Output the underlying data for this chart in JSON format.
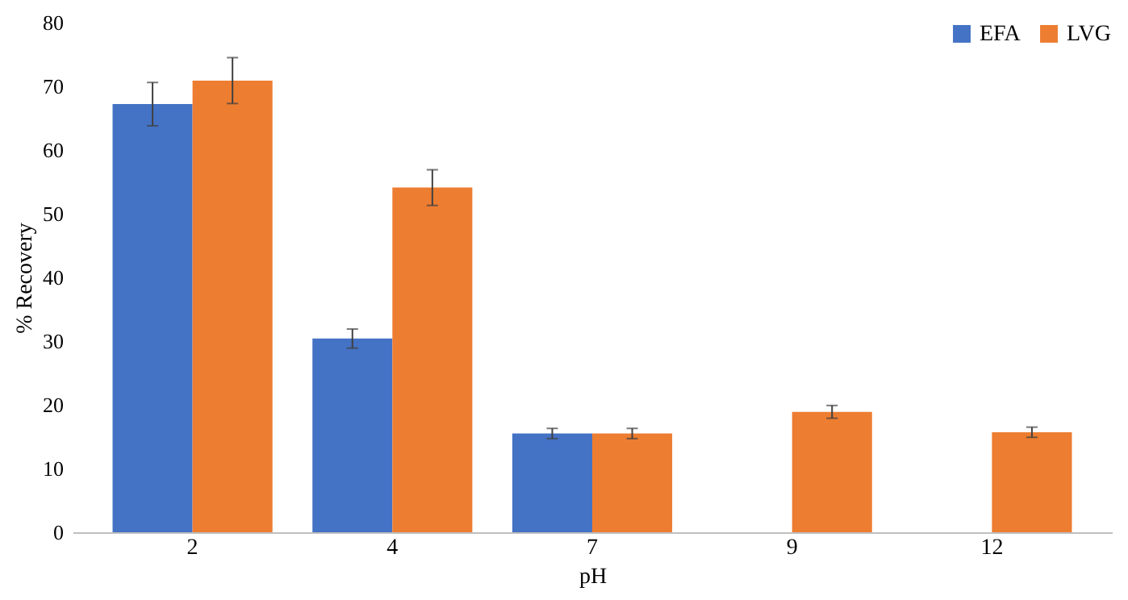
{
  "chart_data": {
    "type": "bar",
    "xlabel": "pH",
    "ylabel": "% Recovery",
    "categories": [
      "2",
      "4",
      "7",
      "9",
      "12"
    ],
    "series": [
      {
        "name": "EFA",
        "color": "#4472c4",
        "values": [
          67.2,
          30.4,
          15.5,
          null,
          null
        ],
        "errors": [
          3.4,
          1.5,
          0.8,
          null,
          null
        ]
      },
      {
        "name": "LVG",
        "color": "#ed7d31",
        "values": [
          70.9,
          54.1,
          15.5,
          18.9,
          15.7
        ],
        "errors": [
          3.6,
          2.8,
          0.8,
          1.0,
          0.8
        ]
      }
    ],
    "ylim": [
      0,
      80
    ],
    "yticks": [
      0,
      10,
      20,
      30,
      40,
      50,
      60,
      70,
      80
    ],
    "grid": false,
    "legend": "top right"
  }
}
